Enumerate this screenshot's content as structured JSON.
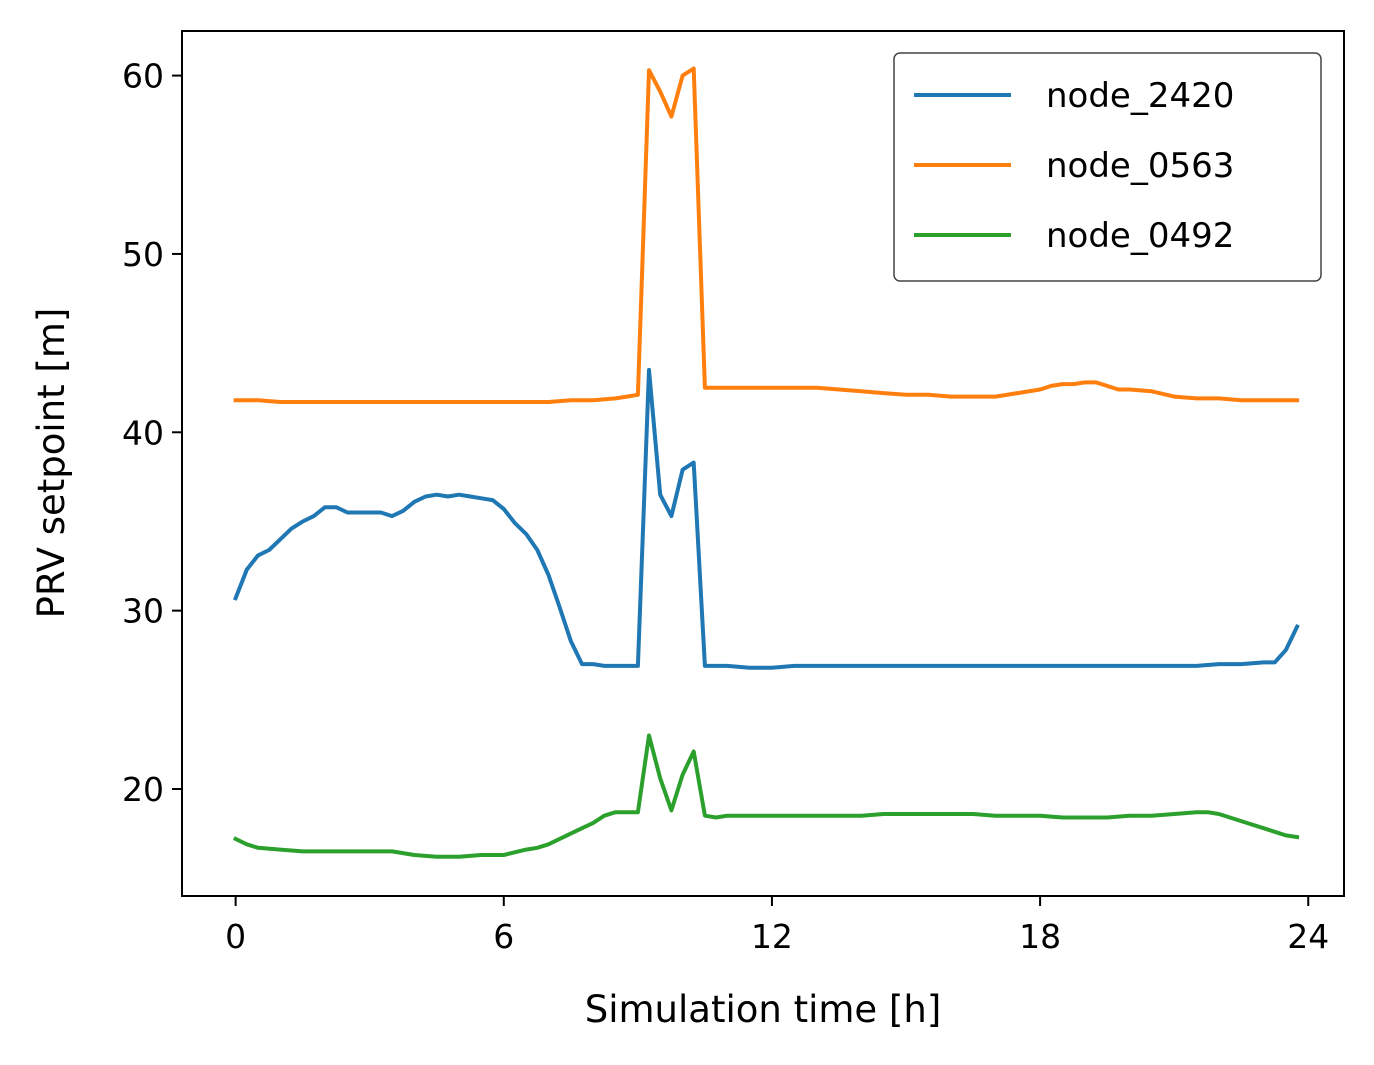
{
  "chart_data": {
    "type": "line",
    "title": "",
    "xlabel": "Simulation time [h]",
    "ylabel": "PRV setpoint [m]",
    "xlim": [
      -1.2,
      24.8
    ],
    "ylim": [
      14.0,
      62.5
    ],
    "xticks": [
      0,
      6,
      12,
      18,
      24
    ],
    "yticks": [
      20,
      30,
      40,
      50,
      60
    ],
    "grid": false,
    "legend_position": "top-right",
    "series": [
      {
        "name": "node_2420",
        "color": "#1f77b4",
        "x": [
          0,
          0.25,
          0.5,
          0.75,
          1.0,
          1.25,
          1.5,
          1.75,
          2.0,
          2.25,
          2.5,
          2.75,
          3.0,
          3.25,
          3.5,
          3.75,
          4.0,
          4.25,
          4.5,
          4.75,
          5.0,
          5.25,
          5.5,
          5.75,
          6.0,
          6.25,
          6.5,
          6.75,
          7.0,
          7.25,
          7.5,
          7.75,
          8.0,
          8.25,
          8.5,
          8.75,
          9.0,
          9.25,
          9.5,
          9.75,
          10.0,
          10.25,
          10.5,
          10.75,
          11.0,
          11.5,
          12.0,
          12.5,
          13.0,
          13.5,
          14.0,
          14.5,
          15.0,
          15.5,
          16.0,
          16.5,
          17.0,
          17.5,
          18.0,
          18.5,
          19.0,
          19.5,
          20.0,
          20.5,
          21.0,
          21.5,
          22.0,
          22.5,
          23.0,
          23.25,
          23.5,
          23.75
        ],
        "values": [
          30.7,
          32.3,
          33.1,
          33.4,
          34.0,
          34.6,
          35.0,
          35.3,
          35.8,
          35.8,
          35.5,
          35.5,
          35.5,
          35.5,
          35.3,
          35.6,
          36.1,
          36.4,
          36.5,
          36.4,
          36.5,
          36.4,
          36.3,
          36.2,
          35.7,
          34.9,
          34.3,
          33.4,
          32.0,
          30.2,
          28.3,
          27.0,
          27.0,
          26.9,
          26.9,
          26.9,
          26.9,
          43.5,
          36.5,
          35.3,
          37.9,
          38.3,
          26.9,
          26.9,
          26.9,
          26.8,
          26.8,
          26.9,
          26.9,
          26.9,
          26.9,
          26.9,
          26.9,
          26.9,
          26.9,
          26.9,
          26.9,
          26.9,
          26.9,
          26.9,
          26.9,
          26.9,
          26.9,
          26.9,
          26.9,
          26.9,
          27.0,
          27.0,
          27.1,
          27.1,
          27.8,
          29.1
        ]
      },
      {
        "name": "node_0563",
        "color": "#ff7f0e",
        "x": [
          0,
          0.5,
          1.0,
          2.0,
          3.0,
          4.0,
          5.0,
          6.0,
          6.5,
          7.0,
          7.5,
          8.0,
          8.5,
          8.75,
          9.0,
          9.25,
          9.5,
          9.75,
          10.0,
          10.25,
          10.5,
          10.75,
          11.0,
          11.5,
          12.0,
          12.5,
          13.0,
          13.5,
          14.0,
          14.5,
          15.0,
          15.5,
          16.0,
          16.5,
          17.0,
          17.5,
          18.0,
          18.25,
          18.5,
          18.75,
          19.0,
          19.25,
          19.5,
          19.75,
          20.0,
          20.5,
          21.0,
          21.5,
          22.0,
          22.5,
          23.0,
          23.5,
          23.75
        ],
        "values": [
          41.8,
          41.8,
          41.7,
          41.7,
          41.7,
          41.7,
          41.7,
          41.7,
          41.7,
          41.7,
          41.8,
          41.8,
          41.9,
          42.0,
          42.1,
          60.3,
          59.1,
          57.7,
          60.0,
          60.4,
          42.5,
          42.5,
          42.5,
          42.5,
          42.5,
          42.5,
          42.5,
          42.4,
          42.3,
          42.2,
          42.1,
          42.1,
          42.0,
          42.0,
          42.0,
          42.2,
          42.4,
          42.6,
          42.7,
          42.7,
          42.8,
          42.8,
          42.6,
          42.4,
          42.4,
          42.3,
          42.0,
          41.9,
          41.9,
          41.8,
          41.8,
          41.8,
          41.8
        ]
      },
      {
        "name": "node_0492",
        "color": "#2ca02c",
        "x": [
          0,
          0.25,
          0.5,
          1.0,
          1.5,
          2.0,
          2.5,
          3.0,
          3.5,
          4.0,
          4.5,
          5.0,
          5.5,
          6.0,
          6.5,
          6.75,
          7.0,
          7.25,
          7.5,
          7.75,
          8.0,
          8.25,
          8.5,
          8.75,
          9.0,
          9.25,
          9.5,
          9.75,
          10.0,
          10.25,
          10.5,
          10.75,
          11.0,
          11.5,
          12.0,
          12.5,
          13.0,
          13.5,
          14.0,
          14.5,
          15.0,
          15.5,
          16.0,
          16.5,
          17.0,
          17.5,
          18.0,
          18.5,
          19.0,
          19.5,
          20.0,
          20.5,
          21.0,
          21.5,
          21.75,
          22.0,
          22.5,
          23.0,
          23.25,
          23.5,
          23.75
        ],
        "values": [
          17.2,
          16.9,
          16.7,
          16.6,
          16.5,
          16.5,
          16.5,
          16.5,
          16.5,
          16.3,
          16.2,
          16.2,
          16.3,
          16.3,
          16.6,
          16.7,
          16.9,
          17.2,
          17.5,
          17.8,
          18.1,
          18.5,
          18.7,
          18.7,
          18.7,
          23.0,
          20.6,
          18.8,
          20.8,
          22.1,
          18.5,
          18.4,
          18.5,
          18.5,
          18.5,
          18.5,
          18.5,
          18.5,
          18.5,
          18.6,
          18.6,
          18.6,
          18.6,
          18.6,
          18.5,
          18.5,
          18.5,
          18.4,
          18.4,
          18.4,
          18.5,
          18.5,
          18.6,
          18.7,
          18.7,
          18.6,
          18.2,
          17.8,
          17.6,
          17.4,
          17.3
        ]
      }
    ]
  }
}
